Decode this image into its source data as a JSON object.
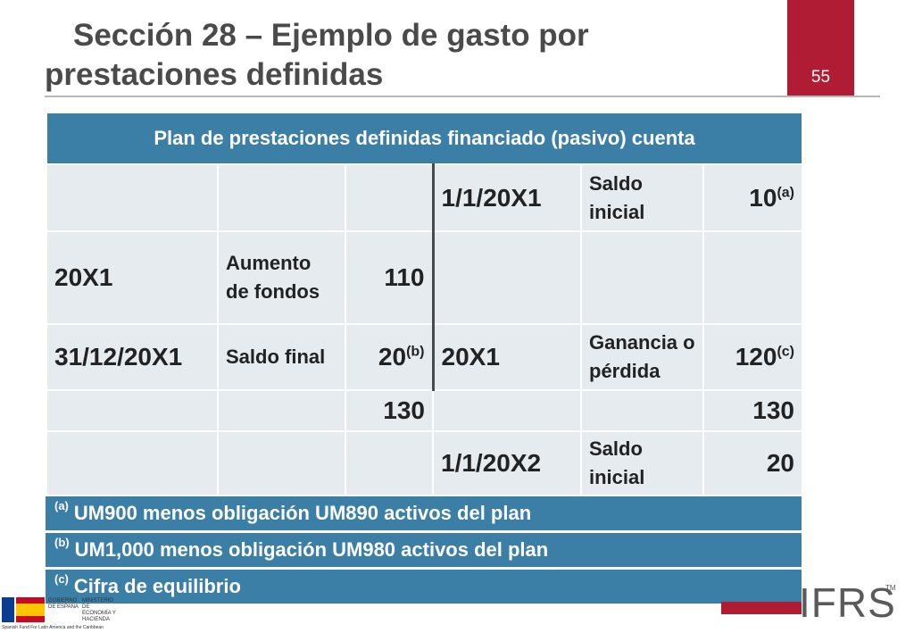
{
  "slide": {
    "title_line1": "Sección 28 – Ejemplo de  gasto por",
    "title_line2": "prestaciones definidas",
    "page_number": "55",
    "accent_color": "#b01c34",
    "header_color": "#3b7ea6"
  },
  "table": {
    "header": "Plan de prestaciones definidas financiado (pasivo) cuenta",
    "rows": [
      [
        "",
        "",
        "",
        "1/1/20X1",
        "Saldo inicial",
        "10"
      ],
      [
        "20X1",
        "Aumento de fondos",
        "110",
        "",
        "",
        ""
      ],
      [
        "31/12/20X1",
        "Saldo final",
        "20",
        "20X1",
        "Ganancia o pérdida",
        "120"
      ],
      [
        "",
        "",
        "130",
        "",
        "",
        "130"
      ],
      [
        "",
        "",
        "",
        "1/1/20X2",
        "Saldo inicial",
        "20"
      ]
    ],
    "marks": {
      "a": "(a)",
      "b": "(b)",
      "c": "(c)"
    }
  },
  "footnotes": [
    {
      "mark": "(a)",
      "text": "UM900 menos obligación UM890 activos del plan"
    },
    {
      "mark": "(b)",
      "text": "UM1,000 menos obligación UM980 activos del plan"
    },
    {
      "mark": "(c)",
      "text": "Cifra de equilibrio"
    }
  ],
  "logos": {
    "ifrs": "IFRS",
    "tm": "TM",
    "gov1": "GOBIERNO DE ESPAÑA",
    "gov2": "MINISTERIO DE ECONOMÍA Y HACIENDA",
    "fund": "Spanish Fund For Latin America and the Caribbean"
  }
}
